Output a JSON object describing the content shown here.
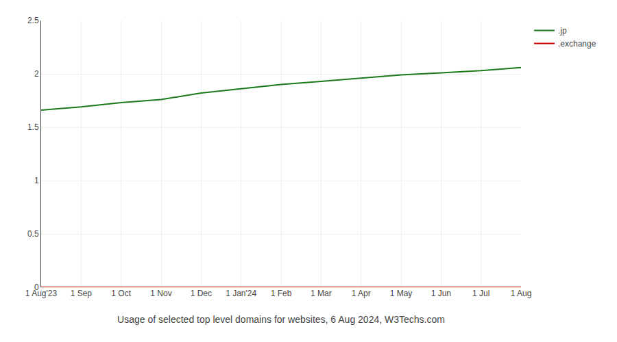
{
  "chart_data": {
    "type": "line",
    "xlabel": "Usage of selected top level domains for websites, 6 Aug 2024, W3Techs.com",
    "categories": [
      "1 Aug'23",
      "1 Sep",
      "1 Oct",
      "1 Nov",
      "1 Dec",
      "1 Jan'24",
      "1 Feb",
      "1 Mar",
      "1 Apr",
      "1 May",
      "1 Jun",
      "1 Jul",
      "1 Aug"
    ],
    "series": [
      {
        "name": ".jp",
        "color": "#1a7a1a",
        "values": [
          1.66,
          1.69,
          1.73,
          1.76,
          1.82,
          1.86,
          1.9,
          1.93,
          1.96,
          1.99,
          2.01,
          2.03,
          2.06
        ]
      },
      {
        "name": ".exchange",
        "color": "#cc0000",
        "values": [
          0.0,
          0.0,
          0.0,
          0.0,
          0.0,
          0.0,
          0.0,
          0.0,
          0.0,
          0.0,
          0.0,
          0.0,
          0.0
        ]
      }
    ],
    "ylim": [
      0,
      2.5
    ],
    "yticks": [
      0,
      0.5,
      1,
      1.5,
      2,
      2.5
    ],
    "grid": true,
    "legend": "upper right"
  }
}
